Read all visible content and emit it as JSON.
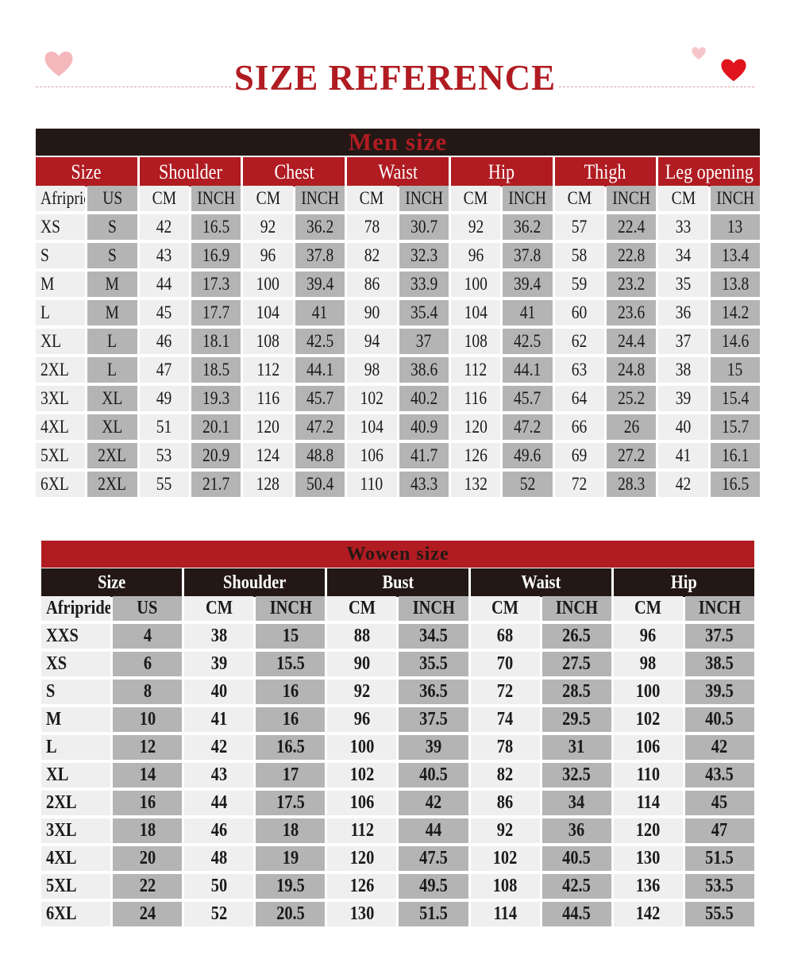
{
  "title": "SIZE REFERENCE",
  "colors": {
    "red": "#b01c22",
    "dark": "#231815",
    "grey_cell": "#b4b4b4",
    "light_cell": "#efefef"
  },
  "men": {
    "title": "Men size",
    "groups": [
      "Size",
      "Shoulder",
      "Chest",
      "Waist",
      "Hip",
      "Thigh",
      "Leg opening"
    ],
    "subheaders": [
      "Afripride",
      "US",
      "CM",
      "INCH",
      "CM",
      "INCH",
      "CM",
      "INCH",
      "CM",
      "INCH",
      "CM",
      "INCH",
      "CM",
      "INCH"
    ],
    "rows": [
      [
        "XS",
        "S",
        "42",
        "16.5",
        "92",
        "36.2",
        "78",
        "30.7",
        "92",
        "36.2",
        "57",
        "22.4",
        "33",
        "13"
      ],
      [
        "S",
        "S",
        "43",
        "16.9",
        "96",
        "37.8",
        "82",
        "32.3",
        "96",
        "37.8",
        "58",
        "22.8",
        "34",
        "13.4"
      ],
      [
        "M",
        "M",
        "44",
        "17.3",
        "100",
        "39.4",
        "86",
        "33.9",
        "100",
        "39.4",
        "59",
        "23.2",
        "35",
        "13.8"
      ],
      [
        "L",
        "M",
        "45",
        "17.7",
        "104",
        "41",
        "90",
        "35.4",
        "104",
        "41",
        "60",
        "23.6",
        "36",
        "14.2"
      ],
      [
        "XL",
        "L",
        "46",
        "18.1",
        "108",
        "42.5",
        "94",
        "37",
        "108",
        "42.5",
        "62",
        "24.4",
        "37",
        "14.6"
      ],
      [
        "2XL",
        "L",
        "47",
        "18.5",
        "112",
        "44.1",
        "98",
        "38.6",
        "112",
        "44.1",
        "63",
        "24.8",
        "38",
        "15"
      ],
      [
        "3XL",
        "XL",
        "49",
        "19.3",
        "116",
        "45.7",
        "102",
        "40.2",
        "116",
        "45.7",
        "64",
        "25.2",
        "39",
        "15.4"
      ],
      [
        "4XL",
        "XL",
        "51",
        "20.1",
        "120",
        "47.2",
        "104",
        "40.9",
        "120",
        "47.2",
        "66",
        "26",
        "40",
        "15.7"
      ],
      [
        "5XL",
        "2XL",
        "53",
        "20.9",
        "124",
        "48.8",
        "106",
        "41.7",
        "126",
        "49.6",
        "69",
        "27.2",
        "41",
        "16.1"
      ],
      [
        "6XL",
        "2XL",
        "55",
        "21.7",
        "128",
        "50.4",
        "110",
        "43.3",
        "132",
        "52",
        "72",
        "28.3",
        "42",
        "16.5"
      ]
    ]
  },
  "women": {
    "title": "Wowen size",
    "groups": [
      "Size",
      "Shoulder",
      "Bust",
      "Waist",
      "Hip"
    ],
    "subheaders": [
      "Afripride",
      "US",
      "CM",
      "INCH",
      "CM",
      "INCH",
      "CM",
      "INCH",
      "CM",
      "INCH"
    ],
    "rows": [
      [
        "XXS",
        "4",
        "38",
        "15",
        "88",
        "34.5",
        "68",
        "26.5",
        "96",
        "37.5"
      ],
      [
        "XS",
        "6",
        "39",
        "15.5",
        "90",
        "35.5",
        "70",
        "27.5",
        "98",
        "38.5"
      ],
      [
        "S",
        "8",
        "40",
        "16",
        "92",
        "36.5",
        "72",
        "28.5",
        "100",
        "39.5"
      ],
      [
        "M",
        "10",
        "41",
        "16",
        "96",
        "37.5",
        "74",
        "29.5",
        "102",
        "40.5"
      ],
      [
        "L",
        "12",
        "42",
        "16.5",
        "100",
        "39",
        "78",
        "31",
        "106",
        "42"
      ],
      [
        "XL",
        "14",
        "43",
        "17",
        "102",
        "40.5",
        "82",
        "32.5",
        "110",
        "43.5"
      ],
      [
        "2XL",
        "16",
        "44",
        "17.5",
        "106",
        "42",
        "86",
        "34",
        "114",
        "45"
      ],
      [
        "3XL",
        "18",
        "46",
        "18",
        "112",
        "44",
        "92",
        "36",
        "120",
        "47"
      ],
      [
        "4XL",
        "20",
        "48",
        "19",
        "120",
        "47.5",
        "102",
        "40.5",
        "130",
        "51.5"
      ],
      [
        "5XL",
        "22",
        "50",
        "19.5",
        "126",
        "49.5",
        "108",
        "42.5",
        "136",
        "53.5"
      ],
      [
        "6XL",
        "24",
        "52",
        "20.5",
        "130",
        "51.5",
        "114",
        "44.5",
        "142",
        "55.5"
      ]
    ]
  }
}
